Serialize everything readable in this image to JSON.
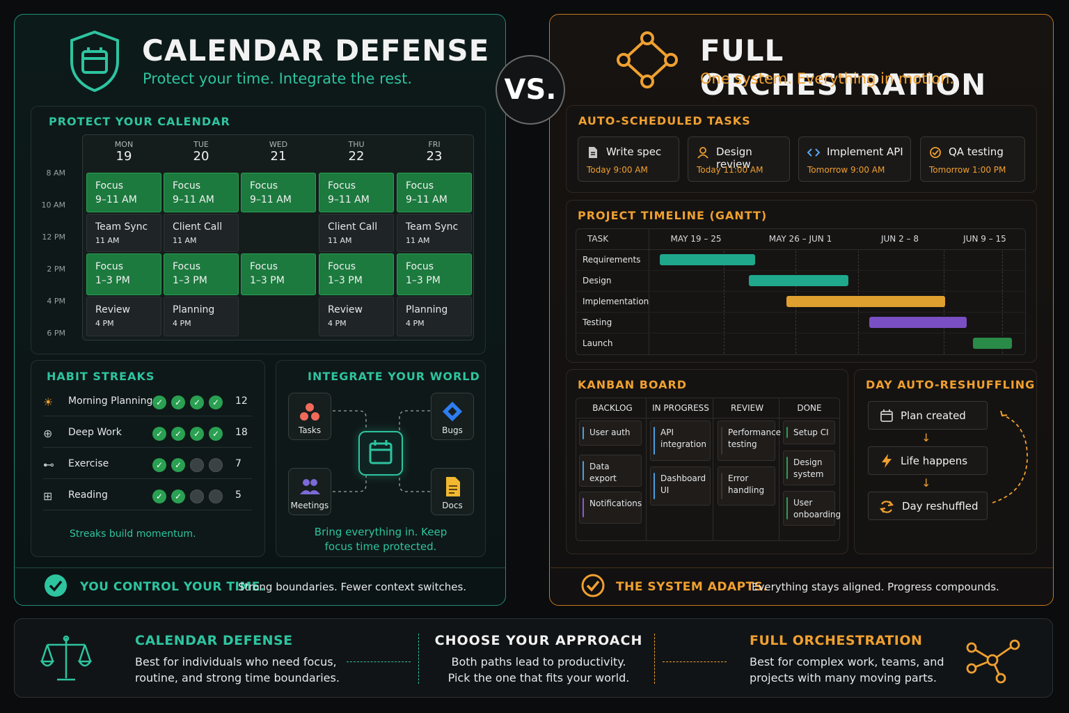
{
  "vs_label": "VS.",
  "left": {
    "title": "CALENDAR DEFENSE",
    "subtitle": "Protect your time. Integrate the rest.",
    "calendar": {
      "section_title": "PROTECT YOUR CALENDAR",
      "days": [
        {
          "dow": "MON",
          "date": "19"
        },
        {
          "dow": "TUE",
          "date": "20"
        },
        {
          "dow": "WED",
          "date": "21"
        },
        {
          "dow": "THU",
          "date": "22"
        },
        {
          "dow": "FRI",
          "date": "23"
        }
      ],
      "times": [
        "8 AM",
        "10 AM",
        "12 PM",
        "2 PM",
        "4 PM",
        "6 PM"
      ],
      "focus_am": {
        "title": "Focus",
        "time": "9–11 AM"
      },
      "focus_pm": {
        "title": "Focus",
        "time": "1–3 PM"
      },
      "midday": [
        {
          "title": "Team Sync",
          "time": "11 AM"
        },
        {
          "title": "Client Call",
          "time": "11 AM"
        },
        null,
        {
          "title": "Client Call",
          "time": "11 AM"
        },
        {
          "title": "Team Sync",
          "time": "11 AM"
        }
      ],
      "late": [
        {
          "title": "Review",
          "time": "4 PM"
        },
        {
          "title": "Planning",
          "time": "4 PM"
        },
        null,
        {
          "title": "Review",
          "time": "4 PM"
        },
        {
          "title": "Planning",
          "time": "4 PM"
        }
      ]
    },
    "habits": {
      "section_title": "HABIT STREAKS",
      "items": [
        {
          "icon": "sun-icon",
          "label": "Morning Planning",
          "done": 4,
          "count": "12"
        },
        {
          "icon": "target-icon",
          "label": "Deep Work",
          "done": 4,
          "count": "18"
        },
        {
          "icon": "dumbbell-icon",
          "label": "Exercise",
          "done": 2,
          "count": "7"
        },
        {
          "icon": "book-icon",
          "label": "Reading",
          "done": 2,
          "count": "5"
        }
      ],
      "footer": "Streaks build momentum."
    },
    "integrate": {
      "section_title": "INTEGRATE YOUR WORLD",
      "tasks": "Tasks",
      "bugs": "Bugs",
      "meetings": "Meetings",
      "docs": "Docs",
      "footer_line1": "Bring everything in. Keep",
      "footer_line2": "focus time protected."
    },
    "banner_strong": "YOU CONTROL YOUR TIME.",
    "banner_text": "Strong boundaries. Fewer context switches."
  },
  "right": {
    "title": "FULL ORCHESTRATION",
    "subtitle": "One system. Everything in motion.",
    "tasks": {
      "section_title": "AUTO-SCHEDULED TASKS",
      "items": [
        {
          "icon": "document-icon",
          "label": "Write spec",
          "time": "Today 9:00 AM"
        },
        {
          "icon": "person-icon",
          "label": "Design review",
          "time": "Today 11:00 AM"
        },
        {
          "icon": "code-icon",
          "label": "Implement API",
          "time": "Tomorrow 9:00 AM"
        },
        {
          "icon": "check-circle-icon",
          "label": "QA testing",
          "time": "Tomorrow 1:00 PM"
        }
      ]
    },
    "gantt": {
      "section_title": "PROJECT TIMELINE (GANTT)",
      "task_header": "TASK",
      "periods": [
        "MAY 19 – 25",
        "MAY 26 – JUN 1",
        "JUN 2 – 8",
        "JUN 9 – 15"
      ],
      "rows": [
        "Requirements",
        "Design",
        "Implementation",
        "Testing",
        "Launch"
      ],
      "colors": [
        "#1fa88c",
        "#1fa88c",
        "#e0a030",
        "#7a4fc4",
        "#2a8a48"
      ]
    },
    "kanban": {
      "section_title": "KANBAN BOARD",
      "columns": [
        "BACKLOG",
        "IN PROGRESS",
        "REVIEW",
        "DONE"
      ],
      "backlog": [
        "User auth",
        "Data export",
        "Notifications"
      ],
      "in_progress": [
        "API integration",
        "Dashboard UI"
      ],
      "review": [
        "Performance testing",
        "Error handling"
      ],
      "done": [
        "Setup CI",
        "Design system",
        "User onboarding"
      ]
    },
    "reshuffle": {
      "section_title": "DAY AUTO-RESHUFFLING",
      "steps": [
        "Plan created",
        "Life happens",
        "Day reshuffled"
      ]
    },
    "banner_strong": "THE SYSTEM ADAPTS.",
    "banner_text": "Everything stays aligned. Progress compounds."
  },
  "footer": {
    "left_title": "CALENDAR DEFENSE",
    "left_line1": "Best for individuals who need focus,",
    "left_line2": "routine, and strong time boundaries.",
    "mid_title": "CHOOSE YOUR APPROACH",
    "mid_line1": "Both paths lead to productivity.",
    "mid_line2": "Pick the one that fits your world.",
    "right_title": "FULL ORCHESTRATION",
    "right_line1": "Best for complex work, teams, and",
    "right_line2": "projects with many moving parts."
  },
  "colors": {
    "teal": "#2ec4a0",
    "orange": "#f0a030",
    "focus_green": "#1c7a3e"
  }
}
